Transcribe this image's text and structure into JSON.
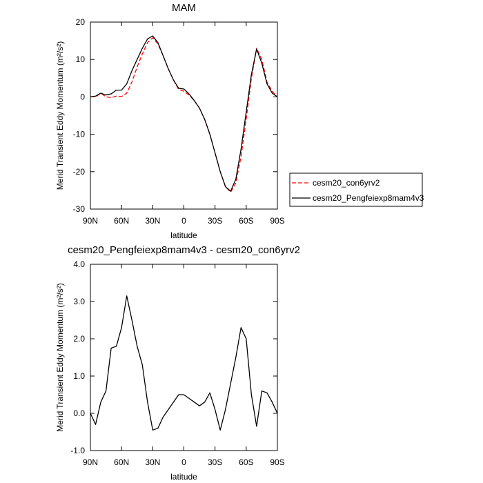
{
  "chart_data": [
    {
      "type": "line",
      "title": "MAM",
      "xlabel": "latitude",
      "ylabel": "Merid Transient Eddy Momentum (m²/s²)",
      "x": [
        90,
        85,
        80,
        75,
        70,
        65,
        60,
        55,
        50,
        45,
        40,
        35,
        30,
        25,
        20,
        15,
        10,
        5,
        0,
        -5,
        -10,
        -15,
        -20,
        -25,
        -30,
        -35,
        -40,
        -45,
        -50,
        -55,
        -60,
        -65,
        -70,
        -75,
        -80,
        -85,
        -90
      ],
      "xlim": [
        90,
        -90
      ],
      "xticks": [
        {
          "value": 90,
          "label": "90N"
        },
        {
          "value": 60,
          "label": "60N"
        },
        {
          "value": 30,
          "label": "30N"
        },
        0,
        {
          "value": -30,
          "label": "30S"
        },
        {
          "value": -60,
          "label": "60S"
        },
        {
          "value": -90,
          "label": "90S"
        }
      ],
      "ylim": [
        -30,
        20
      ],
      "yticks": [
        -30,
        -20,
        -10,
        0,
        10,
        20
      ],
      "legend": "right",
      "series": [
        {
          "name": "cesm20_con6yrv2",
          "color": "#ff0000",
          "linestyle": "dashed",
          "values": [
            0,
            0,
            1.0,
            0,
            -0.2,
            0.2,
            0.1,
            1,
            4,
            8,
            11.5,
            14.5,
            15.8,
            14.2,
            11,
            7.5,
            4.5,
            2,
            1.5,
            0.5,
            -1,
            -3,
            -6,
            -10,
            -15,
            -20,
            -24,
            -25.5,
            -23,
            -16,
            -6,
            5,
            13,
            10,
            4,
            1.5,
            0
          ]
        },
        {
          "name": "cesm20_Pengfeiexp8mam4v3",
          "color": "#000000",
          "linestyle": "solid",
          "values": [
            0,
            0.2,
            1.0,
            0.5,
            0.8,
            1.8,
            1.8,
            3.5,
            7,
            10,
            13,
            15.5,
            16.3,
            14.5,
            11,
            7.5,
            4.5,
            2.3,
            2.1,
            0.8,
            -1.0,
            -3,
            -6,
            -10,
            -15,
            -20,
            -24,
            -25.2,
            -22,
            -14,
            -4,
            6,
            12.8,
            9,
            3.5,
            1.0,
            0
          ]
        }
      ]
    },
    {
      "type": "line",
      "title": "cesm20_Pengfeiexp8mam4v3 - cesm20_con6yrv2",
      "xlabel": "latitude",
      "ylabel": "Merid Transient Eddy Momentum (m²/s²)",
      "x": [
        90,
        85,
        80,
        75,
        70,
        65,
        60,
        55,
        50,
        45,
        40,
        35,
        30,
        25,
        20,
        15,
        10,
        5,
        0,
        -5,
        -10,
        -15,
        -20,
        -25,
        -30,
        -35,
        -40,
        -45,
        -50,
        -55,
        -60,
        -65,
        -70,
        -75,
        -80,
        -85,
        -90
      ],
      "xlim": [
        90,
        -90
      ],
      "xticks": [
        {
          "value": 90,
          "label": "90N"
        },
        {
          "value": 60,
          "label": "60N"
        },
        {
          "value": 30,
          "label": "30N"
        },
        0,
        {
          "value": -30,
          "label": "30S"
        },
        {
          "value": -60,
          "label": "60S"
        },
        {
          "value": -90,
          "label": "90S"
        }
      ],
      "ylim": [
        -1,
        4
      ],
      "yticks": [
        {
          "value": -1,
          "label": "-1.0"
        },
        {
          "value": 0,
          "label": "0.0"
        },
        {
          "value": 1,
          "label": "1.0"
        },
        {
          "value": 2,
          "label": "2.0"
        },
        {
          "value": 3,
          "label": "3.0"
        },
        {
          "value": 4,
          "label": "4.0"
        }
      ],
      "series": [
        {
          "color": "#000000",
          "linestyle": "solid",
          "values": [
            0,
            -0.3,
            0.3,
            0.6,
            1.75,
            1.8,
            2.3,
            3.15,
            2.5,
            1.8,
            1.3,
            0.3,
            -0.45,
            -0.4,
            -0.1,
            0.1,
            0.3,
            0.5,
            0.5,
            0.4,
            0.3,
            0.2,
            0.3,
            0.55,
            0.1,
            -0.45,
            0.1,
            0.8,
            1.5,
            2.3,
            2.0,
            0.5,
            -0.35,
            0.6,
            0.55,
            0.3,
            0
          ]
        }
      ]
    }
  ]
}
